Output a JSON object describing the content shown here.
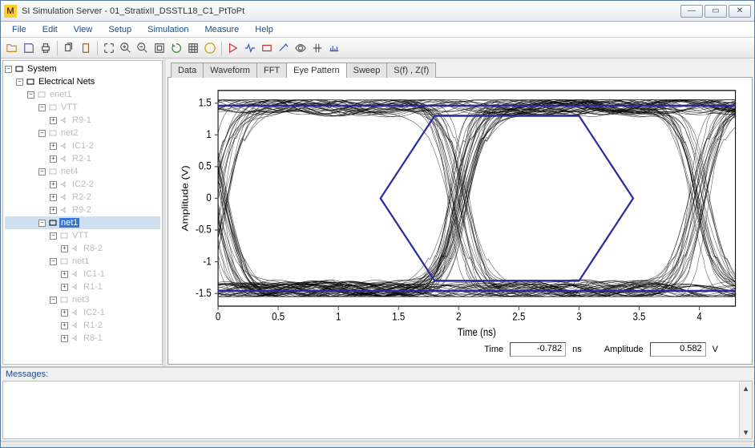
{
  "window": {
    "title": "SI Simulation Server - 01_StratixII_DSSTL18_C1_PtToPt"
  },
  "menu": [
    "File",
    "Edit",
    "View",
    "Setup",
    "Simulation",
    "Measure",
    "Help"
  ],
  "tree": {
    "root": "System",
    "group": "Electrical Nets",
    "nodes": [
      {
        "d": 2,
        "exp": "-",
        "lbl": "enet1",
        "g": true
      },
      {
        "d": 3,
        "exp": "-",
        "lbl": "VTT",
        "g": true
      },
      {
        "d": 4,
        "exp": "+",
        "lbl": "R9-1",
        "g": true,
        "leaf": true
      },
      {
        "d": 3,
        "exp": "-",
        "lbl": "net2",
        "g": true
      },
      {
        "d": 4,
        "exp": "+",
        "lbl": "IC1-2",
        "g": true,
        "leaf": true
      },
      {
        "d": 4,
        "exp": "+",
        "lbl": "R2-1",
        "g": true,
        "leaf": true
      },
      {
        "d": 3,
        "exp": "-",
        "lbl": "net4",
        "g": true
      },
      {
        "d": 4,
        "exp": "+",
        "lbl": "IC2-2",
        "g": true,
        "leaf": true
      },
      {
        "d": 4,
        "exp": "+",
        "lbl": "R2-2",
        "g": true,
        "leaf": true
      },
      {
        "d": 4,
        "exp": "+",
        "lbl": "R9-2",
        "g": true,
        "leaf": true
      },
      {
        "d": 3,
        "exp": "-",
        "lbl": "net1",
        "sel": true
      },
      {
        "d": 4,
        "exp": "-",
        "lbl": "VTT",
        "g": true
      },
      {
        "d": 5,
        "exp": "+",
        "lbl": "R8-2",
        "g": true,
        "leaf": true
      },
      {
        "d": 4,
        "exp": "-",
        "lbl": "net1",
        "g": true
      },
      {
        "d": 5,
        "exp": "+",
        "lbl": "IC1-1",
        "g": true,
        "leaf": true
      },
      {
        "d": 5,
        "exp": "+",
        "lbl": "R1-1",
        "g": true,
        "leaf": true
      },
      {
        "d": 4,
        "exp": "-",
        "lbl": "net3",
        "g": true
      },
      {
        "d": 5,
        "exp": "+",
        "lbl": "IC2-1",
        "g": true,
        "leaf": true
      },
      {
        "d": 5,
        "exp": "+",
        "lbl": "R1-2",
        "g": true,
        "leaf": true
      },
      {
        "d": 5,
        "exp": "+",
        "lbl": "R8-1",
        "g": true,
        "leaf": true
      }
    ]
  },
  "tabs": [
    "Data",
    "Waveform",
    "FFT",
    "Eye Pattern",
    "Sweep",
    "S(f) , Z(f)"
  ],
  "activeTab": 3,
  "chart": {
    "xlabel": "Time (ns)",
    "ylabel": "Amplitude (V)",
    "xlim": [
      0,
      4.3
    ],
    "ylim": [
      -1.7,
      1.7
    ],
    "xticks": [
      0,
      0.5,
      1,
      1.5,
      2,
      2.5,
      3,
      3.5,
      4
    ],
    "yticks": [
      -1.5,
      -1,
      -0.5,
      0,
      0.5,
      1,
      1.5
    ],
    "bg": "#ffffff",
    "axis_color": "#000000",
    "trace_color": "#000000",
    "mask_color": "#2a2aa0",
    "tick_color": "#555555",
    "label_fontsize": 11,
    "tick_fontsize": 10,
    "rail_hi": 1.46,
    "rail_lo": -1.46,
    "eye_center": 2.0,
    "mask_top": 1.3,
    "mask_bot": -1.3,
    "mask_left_x": 1.35,
    "mask_right_x": 3.45,
    "mask_slope_w": 0.45
  },
  "readback": {
    "time_label": "Time",
    "time_value": "-0.782",
    "time_unit": "ns",
    "amp_label": "Amplitude",
    "amp_value": "0.582",
    "amp_unit": "V"
  },
  "messages": {
    "label": "Messages:"
  }
}
